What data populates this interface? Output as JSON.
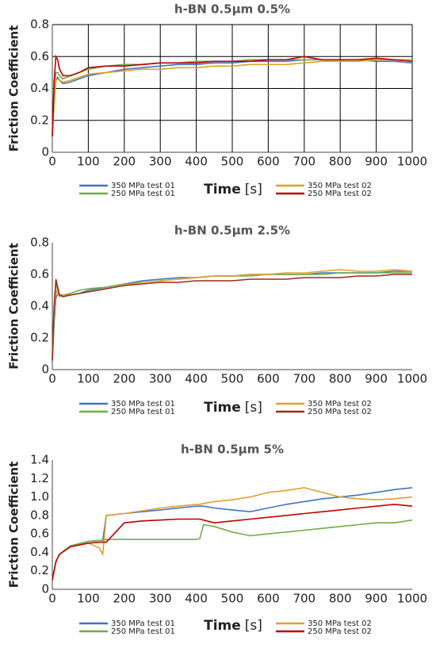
{
  "chart_data": [
    {
      "type": "line",
      "title": "h-BN 0.5µm 0.5%",
      "x_label": "Time",
      "x_unit": "[s]",
      "y_label": "Friction Coefficient",
      "grid": true,
      "xlim": [
        0,
        1000
      ],
      "xticks": [
        0,
        100,
        200,
        300,
        400,
        500,
        600,
        700,
        800,
        900,
        1000
      ],
      "ylim": [
        0,
        0.8
      ],
      "yticks": [
        0,
        0.2,
        0.4,
        0.6,
        0.8
      ],
      "x": [
        0,
        5,
        10,
        15,
        20,
        30,
        50,
        75,
        100,
        150,
        200,
        250,
        300,
        350,
        400,
        450,
        500,
        550,
        600,
        650,
        700,
        750,
        800,
        850,
        900,
        950,
        1000
      ],
      "series": [
        {
          "name": "350 MPa test 01",
          "color": "#4472c4",
          "values": [
            0.1,
            0.3,
            0.45,
            0.47,
            0.45,
            0.43,
            0.44,
            0.46,
            0.48,
            0.5,
            0.52,
            0.53,
            0.54,
            0.55,
            0.55,
            0.56,
            0.56,
            0.57,
            0.57,
            0.57,
            0.58,
            0.58,
            0.58,
            0.58,
            0.57,
            0.57,
            0.56
          ]
        },
        {
          "name": "250 MPa test 01",
          "color": "#70ad47",
          "values": [
            0.12,
            0.35,
            0.5,
            0.5,
            0.48,
            0.46,
            0.48,
            0.5,
            0.52,
            0.54,
            0.55,
            0.55,
            0.56,
            0.56,
            0.57,
            0.57,
            0.57,
            0.58,
            0.58,
            0.58,
            0.58,
            0.58,
            0.58,
            0.58,
            0.58,
            0.58,
            0.58
          ]
        },
        {
          "name": "350 MPa test 02",
          "color": "#d9a520",
          "values": [
            0.1,
            0.3,
            0.45,
            0.46,
            0.45,
            0.44,
            0.45,
            0.47,
            0.49,
            0.5,
            0.51,
            0.52,
            0.52,
            0.53,
            0.53,
            0.54,
            0.54,
            0.55,
            0.55,
            0.55,
            0.56,
            0.57,
            0.57,
            0.57,
            0.58,
            0.58,
            0.58
          ]
        },
        {
          "name": "250 MPa test 02",
          "color": "#c00000",
          "values": [
            0.1,
            0.45,
            0.6,
            0.58,
            0.52,
            0.48,
            0.48,
            0.5,
            0.53,
            0.54,
            0.54,
            0.55,
            0.56,
            0.56,
            0.56,
            0.57,
            0.57,
            0.57,
            0.58,
            0.58,
            0.6,
            0.58,
            0.58,
            0.58,
            0.59,
            0.58,
            0.57
          ]
        }
      ]
    },
    {
      "type": "line",
      "title": "h-BN 0.5µm 2.5%",
      "x_label": "Time",
      "x_unit": "[s]",
      "y_label": "Friction Coefficient",
      "grid": false,
      "xlim": [
        0,
        1000
      ],
      "xticks": [
        0,
        100,
        200,
        300,
        400,
        500,
        600,
        700,
        800,
        900,
        1000
      ],
      "ylim": [
        0,
        0.8
      ],
      "yticks": [
        0,
        0.2,
        0.4,
        0.6,
        0.8
      ],
      "x": [
        0,
        5,
        10,
        15,
        20,
        30,
        50,
        75,
        100,
        150,
        200,
        250,
        300,
        350,
        400,
        450,
        500,
        550,
        600,
        650,
        700,
        750,
        800,
        850,
        900,
        950,
        1000
      ],
      "series": [
        {
          "name": "350 MPa test 01",
          "color": "#4472c4",
          "values": [
            0.05,
            0.3,
            0.45,
            0.48,
            0.47,
            0.47,
            0.47,
            0.48,
            0.5,
            0.52,
            0.54,
            0.56,
            0.57,
            0.58,
            0.58,
            0.59,
            0.59,
            0.6,
            0.6,
            0.6,
            0.6,
            0.61,
            0.61,
            0.61,
            0.61,
            0.62,
            0.62
          ]
        },
        {
          "name": "250 MPa test 01",
          "color": "#70ad47",
          "values": [
            0.08,
            0.4,
            0.55,
            0.5,
            0.47,
            0.47,
            0.48,
            0.5,
            0.51,
            0.52,
            0.54,
            0.55,
            0.56,
            0.57,
            0.58,
            0.59,
            0.59,
            0.59,
            0.6,
            0.6,
            0.6,
            0.6,
            0.61,
            0.61,
            0.61,
            0.61,
            0.61
          ]
        },
        {
          "name": "350 MPa test 02",
          "color": "#e0a030",
          "values": [
            0.06,
            0.35,
            0.5,
            0.48,
            0.46,
            0.47,
            0.47,
            0.48,
            0.49,
            0.51,
            0.53,
            0.55,
            0.56,
            0.57,
            0.58,
            0.59,
            0.59,
            0.6,
            0.6,
            0.61,
            0.61,
            0.62,
            0.63,
            0.62,
            0.62,
            0.63,
            0.62
          ]
        },
        {
          "name": "250 MPa test 02",
          "color": "#9b2d14",
          "values": [
            0.06,
            0.4,
            0.57,
            0.52,
            0.47,
            0.46,
            0.47,
            0.48,
            0.49,
            0.51,
            0.53,
            0.54,
            0.55,
            0.55,
            0.56,
            0.56,
            0.56,
            0.57,
            0.57,
            0.57,
            0.58,
            0.58,
            0.58,
            0.59,
            0.59,
            0.6,
            0.6
          ]
        }
      ]
    },
    {
      "type": "line",
      "title": "h-BN 0.5µm 5%",
      "x_label": "Time",
      "x_unit": "[s]",
      "y_label": "Friction Coefficient",
      "grid": false,
      "xlim": [
        0,
        1000
      ],
      "xticks": [
        0,
        100,
        200,
        300,
        400,
        500,
        600,
        700,
        800,
        900,
        1000
      ],
      "ylim": [
        0,
        1.4
      ],
      "yticks": [
        0,
        0.2,
        0.4,
        0.6,
        0.8,
        {
          "value": 1,
          "label": "1.0"
        },
        1.2,
        1.4
      ],
      "x": [
        0,
        10,
        20,
        50,
        100,
        130,
        140,
        150,
        200,
        250,
        300,
        350,
        400,
        410,
        420,
        450,
        500,
        550,
        600,
        650,
        700,
        750,
        800,
        850,
        900,
        950,
        1000
      ],
      "series": [
        {
          "name": "350 MPa test 01",
          "color": "#4472c4",
          "values": [
            0.1,
            0.3,
            0.38,
            0.47,
            0.52,
            0.53,
            0.53,
            0.8,
            0.82,
            0.84,
            0.86,
            0.88,
            0.9,
            0.9,
            0.9,
            0.88,
            0.86,
            0.84,
            0.88,
            0.92,
            0.95,
            0.98,
            1.0,
            1.02,
            1.05,
            1.08,
            1.1
          ]
        },
        {
          "name": "250 MPa test 01",
          "color": "#70ad47",
          "values": [
            0.1,
            0.3,
            0.38,
            0.47,
            0.52,
            0.53,
            0.53,
            0.54,
            0.54,
            0.54,
            0.54,
            0.54,
            0.54,
            0.55,
            0.7,
            0.68,
            0.62,
            0.58,
            0.6,
            0.62,
            0.64,
            0.66,
            0.68,
            0.7,
            0.72,
            0.72,
            0.75
          ]
        },
        {
          "name": "350 MPa test 02",
          "color": "#e0a030",
          "values": [
            0.1,
            0.3,
            0.38,
            0.46,
            0.5,
            0.45,
            0.38,
            0.8,
            0.82,
            0.85,
            0.88,
            0.9,
            0.92,
            0.92,
            0.93,
            0.95,
            0.97,
            1.0,
            1.05,
            1.07,
            1.1,
            1.05,
            1.0,
            0.98,
            0.97,
            0.98,
            1.0
          ]
        },
        {
          "name": "250 MPa test 02",
          "color": "#c00000",
          "values": [
            0.1,
            0.3,
            0.38,
            0.46,
            0.5,
            0.51,
            0.51,
            0.51,
            0.72,
            0.74,
            0.75,
            0.76,
            0.76,
            0.76,
            0.75,
            0.72,
            0.74,
            0.76,
            0.78,
            0.8,
            0.82,
            0.84,
            0.86,
            0.88,
            0.9,
            0.92,
            0.9
          ]
        }
      ]
    }
  ]
}
